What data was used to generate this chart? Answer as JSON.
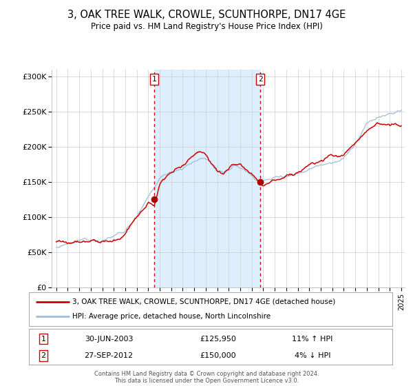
{
  "title": "3, OAK TREE WALK, CROWLE, SCUNTHORPE, DN17 4GE",
  "subtitle": "Price paid vs. HM Land Registry's House Price Index (HPI)",
  "legend_line1": "3, OAK TREE WALK, CROWLE, SCUNTHORPE, DN17 4GE (detached house)",
  "legend_line2": "HPI: Average price, detached house, North Lincolnshire",
  "sale1_date": "30-JUN-2003",
  "sale1_price": "£125,950",
  "sale1_hpi": "11% ↑ HPI",
  "sale2_date": "27-SEP-2012",
  "sale2_price": "£150,000",
  "sale2_hpi": "4% ↓ HPI",
  "footer1": "Contains HM Land Registry data © Crown copyright and database right 2024.",
  "footer2": "This data is licensed under the Open Government Licence v3.0.",
  "hpi_color": "#a0bcd8",
  "price_color": "#cc0000",
  "shading_color": "#ddeeff",
  "ylim": [
    0,
    310000
  ],
  "yticks": [
    0,
    50000,
    100000,
    150000,
    200000,
    250000,
    300000
  ],
  "ytick_labels": [
    "£0",
    "£50K",
    "£100K",
    "£150K",
    "£200K",
    "£250K",
    "£300K"
  ],
  "marker1_year": 2003.5,
  "marker1_value": 125950,
  "marker2_year": 2012.75,
  "marker2_value": 150000
}
